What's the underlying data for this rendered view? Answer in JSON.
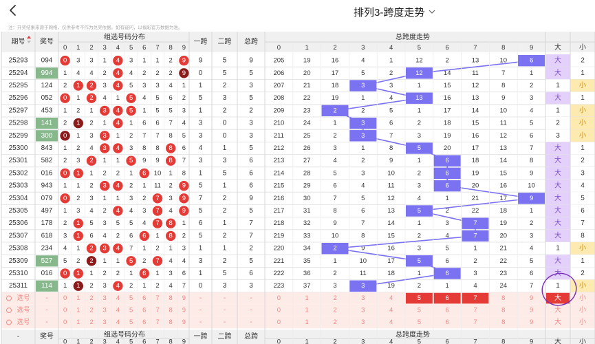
{
  "header": {
    "title": "排列3-跨度走势"
  },
  "notice": "注：开奖结果来源于网络，仅供参考不作为兑奖依据。如有疑问，以福彩官方数据为准。",
  "table": {
    "col_issue": "期号",
    "col_prize": "奖号",
    "group_dist": "组选号码分布",
    "col_kua1": "一跨",
    "col_kua2": "二跨",
    "col_total": "总跨",
    "span_trend": "总跨度走势",
    "digits": [
      "0",
      "1",
      "2",
      "3",
      "4",
      "5",
      "6",
      "7",
      "8",
      "9"
    ],
    "big": "大",
    "small": "小",
    "select_label": "选号",
    "dash": "-"
  },
  "colors": {
    "hit_red": "#e53b37",
    "hit_dark": "#8b1a1a",
    "span_purple": "#7b72f2",
    "big_bg": "#e3d1fb",
    "small_bg": "#fdeab0",
    "prize_green": "#86b88b",
    "select_bg": "#fdebe8",
    "select_text": "#ee8a86"
  },
  "rows": [
    {
      "issue": "25293",
      "prize": "094",
      "hl": false,
      "dist": [
        "0",
        "3",
        "3",
        "1",
        "4",
        "3",
        "1",
        "1",
        "2",
        "9"
      ],
      "hit": {
        "0": "r",
        "4": "r",
        "9": "r"
      },
      "k1": "9",
      "k2": "5",
      "kt": "9",
      "trend": [
        "205",
        "19",
        "16",
        "4",
        "1",
        "12",
        "2",
        "13",
        "10",
        "6"
      ],
      "span": 9,
      "bs": "大",
      "sv": "2",
      "big": true
    },
    {
      "issue": "25294",
      "prize": "994",
      "hl": true,
      "dist": [
        "1",
        "4",
        "4",
        "2",
        "4",
        "4",
        "2",
        "2",
        "2",
        "9"
      ],
      "hit": {
        "4": "r",
        "9": "d"
      },
      "k1": "0",
      "k2": "5",
      "kt": "5",
      "trend": [
        "206",
        "20",
        "17",
        "5",
        "2",
        "12",
        "14",
        "11",
        "7",
        "1"
      ],
      "span": 5,
      "bs": "大",
      "sv": "1",
      "big": true
    },
    {
      "issue": "25295",
      "prize": "124",
      "hl": false,
      "dist": [
        "2",
        "1",
        "2",
        "3",
        "4",
        "5",
        "3",
        "3",
        "4",
        "1"
      ],
      "hit": {
        "1": "r",
        "2": "r",
        "4": "r"
      },
      "k1": "1",
      "k2": "2",
      "kt": "3",
      "trend": [
        "207",
        "21",
        "18",
        "3",
        "3",
        "1",
        "15",
        "12",
        "8",
        "2"
      ],
      "span": 3,
      "bs": "1",
      "sv": "小",
      "big": false
    },
    {
      "issue": "25296",
      "prize": "052",
      "hl": false,
      "dist": [
        "0",
        "1",
        "2",
        "4",
        "1",
        "5",
        "4",
        "5",
        "6",
        "2"
      ],
      "hit": {
        "0": "r",
        "2": "r",
        "5": "r"
      },
      "k1": "5",
      "k2": "3",
      "kt": "5",
      "trend": [
        "208",
        "22",
        "19",
        "1",
        "4",
        "13",
        "16",
        "13",
        "9",
        "3"
      ],
      "span": 5,
      "bs": "大",
      "sv": "1",
      "big": true
    },
    {
      "issue": "25297",
      "prize": "453",
      "hl": false,
      "dist": [
        "1",
        "2",
        "1",
        "3",
        "4",
        "5",
        "1",
        "5",
        "5",
        "3"
      ],
      "hit": {
        "3": "r",
        "4": "r",
        "5": "r"
      },
      "k1": "1",
      "k2": "2",
      "kt": "2",
      "trend": [
        "209",
        "23",
        "2",
        "2",
        "5",
        "1",
        "17",
        "14",
        "10",
        "4"
      ],
      "span": 2,
      "bs": "1",
      "sv": "小",
      "big": false
    },
    {
      "issue": "25298",
      "prize": "141",
      "hl": true,
      "dist": [
        "2",
        "1",
        "2",
        "1",
        "4",
        "1",
        "6",
        "6",
        "7",
        "4"
      ],
      "hit": {
        "1": "d",
        "4": "r"
      },
      "k1": "3",
      "k2": "0",
      "kt": "3",
      "trend": [
        "210",
        "24",
        "1",
        "3",
        "6",
        "2",
        "18",
        "15",
        "11",
        "5"
      ],
      "span": 3,
      "bs": "2",
      "sv": "小",
      "big": false
    },
    {
      "issue": "25299",
      "prize": "300",
      "hl": true,
      "dist": [
        "0",
        "1",
        "3",
        "3",
        "1",
        "2",
        "7",
        "7",
        "8",
        "5"
      ],
      "hit": {
        "0": "d",
        "3": "r"
      },
      "k1": "3",
      "k2": "0",
      "kt": "3",
      "trend": [
        "211",
        "25",
        "2",
        "3",
        "7",
        "3",
        "19",
        "16",
        "12",
        "6"
      ],
      "span": 3,
      "bs": "3",
      "sv": "小",
      "big": false
    },
    {
      "issue": "25300",
      "prize": "843",
      "hl": false,
      "dist": [
        "1",
        "2",
        "4",
        "3",
        "4",
        "3",
        "8",
        "8",
        "8",
        "6"
      ],
      "hit": {
        "3": "r",
        "4": "r",
        "8": "r"
      },
      "k1": "4",
      "k2": "1",
      "kt": "5",
      "trend": [
        "212",
        "26",
        "3",
        "1",
        "8",
        "5",
        "20",
        "17",
        "13",
        "7"
      ],
      "span": 5,
      "bs": "大",
      "sv": "1",
      "big": true
    },
    {
      "issue": "25301",
      "prize": "582",
      "hl": false,
      "dist": [
        "2",
        "3",
        "2",
        "1",
        "1",
        "5",
        "9",
        "9",
        "8",
        "7"
      ],
      "hit": {
        "2": "r",
        "5": "r",
        "8": "r"
      },
      "k1": "3",
      "k2": "3",
      "kt": "6",
      "trend": [
        "213",
        "27",
        "4",
        "2",
        "9",
        "1",
        "6",
        "18",
        "14",
        "8"
      ],
      "span": 6,
      "bs": "大",
      "sv": "2",
      "big": true
    },
    {
      "issue": "25302",
      "prize": "016",
      "hl": false,
      "dist": [
        "0",
        "1",
        "1",
        "2",
        "2",
        "1",
        "6",
        "10",
        "1",
        "8"
      ],
      "hit": {
        "0": "r",
        "1": "r",
        "6": "r"
      },
      "k1": "1",
      "k2": "5",
      "kt": "6",
      "trend": [
        "214",
        "28",
        "5",
        "3",
        "10",
        "2",
        "6",
        "19",
        "15",
        "9"
      ],
      "span": 6,
      "bs": "大",
      "sv": "3",
      "big": true
    },
    {
      "issue": "25303",
      "prize": "943",
      "hl": false,
      "dist": [
        "1",
        "1",
        "2",
        "3",
        "4",
        "2",
        "1",
        "11",
        "2",
        "9"
      ],
      "hit": {
        "3": "r",
        "4": "r",
        "9": "r"
      },
      "k1": "5",
      "k2": "1",
      "kt": "6",
      "trend": [
        "215",
        "29",
        "6",
        "4",
        "11",
        "3",
        "6",
        "20",
        "16",
        "10"
      ],
      "span": 6,
      "bs": "大",
      "sv": "4",
      "big": true
    },
    {
      "issue": "25304",
      "prize": "079",
      "hl": false,
      "dist": [
        "0",
        "2",
        "3",
        "1",
        "1",
        "3",
        "2",
        "7",
        "3",
        "9"
      ],
      "hit": {
        "0": "r",
        "7": "r",
        "9": "r"
      },
      "k1": "7",
      "k2": "2",
      "kt": "9",
      "trend": [
        "216",
        "30",
        "7",
        "5",
        "12",
        "4",
        "1",
        "21",
        "17",
        "9"
      ],
      "span": 9,
      "bs": "大",
      "sv": "5",
      "big": true
    },
    {
      "issue": "25305",
      "prize": "497",
      "hl": false,
      "dist": [
        "1",
        "3",
        "4",
        "2",
        "4",
        "4",
        "3",
        "7",
        "4",
        "9"
      ],
      "hit": {
        "4": "r",
        "7": "r",
        "9": "r"
      },
      "k1": "5",
      "k2": "2",
      "kt": "5",
      "trend": [
        "217",
        "31",
        "8",
        "6",
        "13",
        "5",
        "2",
        "22",
        "18",
        "1"
      ],
      "span": 5,
      "bs": "大",
      "sv": "6",
      "big": true
    },
    {
      "issue": "25306",
      "prize": "178",
      "hl": false,
      "dist": [
        "2",
        "1",
        "5",
        "3",
        "5",
        "5",
        "4",
        "7",
        "8",
        "1"
      ],
      "hit": {
        "1": "r",
        "7": "r",
        "8": "r"
      },
      "k1": "6",
      "k2": "1",
      "kt": "7",
      "trend": [
        "218",
        "32",
        "9",
        "7",
        "14",
        "1",
        "3",
        "7",
        "19",
        "2"
      ],
      "span": 7,
      "bs": "大",
      "sv": "7",
      "big": true
    },
    {
      "issue": "25307",
      "prize": "618",
      "hl": false,
      "dist": [
        "3",
        "1",
        "6",
        "4",
        "2",
        "6",
        "6",
        "1",
        "8",
        "2"
      ],
      "hit": {
        "1": "r",
        "6": "r",
        "8": "r"
      },
      "k1": "5",
      "k2": "2",
      "kt": "7",
      "trend": [
        "219",
        "33",
        "10",
        "8",
        "15",
        "2",
        "4",
        "7",
        "20",
        "3"
      ],
      "span": 7,
      "bs": "大",
      "sv": "8",
      "big": true
    },
    {
      "issue": "25308",
      "prize": "234",
      "hl": false,
      "dist": [
        "4",
        "1",
        "2",
        "3",
        "4",
        "7",
        "1",
        "2",
        "1",
        "3"
      ],
      "hit": {
        "2": "r",
        "3": "r",
        "4": "r"
      },
      "k1": "1",
      "k2": "1",
      "kt": "2",
      "trend": [
        "220",
        "34",
        "2",
        "9",
        "16",
        "3",
        "5",
        "1",
        "21",
        "4"
      ],
      "span": 2,
      "bs": "1",
      "sv": "小",
      "big": false
    },
    {
      "issue": "25309",
      "prize": "527",
      "hl": true,
      "dist": [
        "5",
        "2",
        "2",
        "1",
        "1",
        "5",
        "2",
        "7",
        "4",
        "4"
      ],
      "hit": {
        "2": "d",
        "5": "r",
        "7": "r"
      },
      "k1": "3",
      "k2": "2",
      "kt": "5",
      "trend": [
        "221",
        "35",
        "1",
        "10",
        "17",
        "5",
        "6",
        "2",
        "22",
        "5"
      ],
      "span": 5,
      "bs": "大",
      "sv": "1",
      "big": true
    },
    {
      "issue": "25310",
      "prize": "016",
      "hl": false,
      "dist": [
        "0",
        "1",
        "1",
        "2",
        "2",
        "1",
        "6",
        "1",
        "3",
        "6"
      ],
      "hit": {
        "0": "r",
        "1": "r",
        "6": "r"
      },
      "k1": "1",
      "k2": "5",
      "kt": "6",
      "trend": [
        "222",
        "36",
        "2",
        "11",
        "18",
        "1",
        "6",
        "3",
        "23",
        "6"
      ],
      "span": 6,
      "bs": "大",
      "sv": "2",
      "big": true
    },
    {
      "issue": "25311",
      "prize": "114",
      "hl": true,
      "dist": [
        "1",
        "1",
        "2",
        "3",
        "4",
        "2",
        "1",
        "2",
        "4",
        "7"
      ],
      "hit": {
        "1": "d",
        "4": "r"
      },
      "k1": "0",
      "k2": "3",
      "kt": "3",
      "trend": [
        "223",
        "37",
        "3",
        "3",
        "19",
        "2",
        "1",
        "4",
        "24",
        "7"
      ],
      "span": 3,
      "bs": "1",
      "sv": "小",
      "big": false
    }
  ]
}
